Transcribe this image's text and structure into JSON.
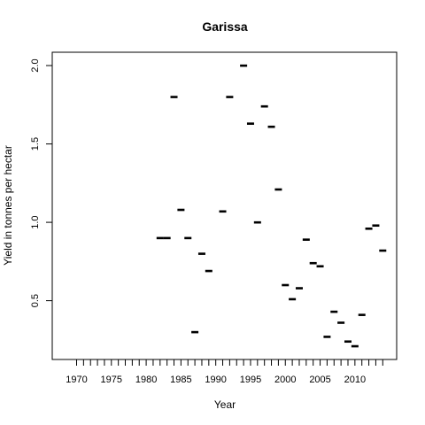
{
  "chart_data": {
    "type": "scatter",
    "title": "Garissa",
    "xlabel": "Year",
    "ylabel": "Yield in tonnes per hectar",
    "xlim": [
      1966.5,
      2016
    ],
    "ylim": [
      0.125,
      2.085
    ],
    "x_minor_ticks": [
      1970,
      1971,
      1972,
      1973,
      1974,
      1975,
      1976,
      1977,
      1978,
      1979,
      1980,
      1981,
      1982,
      1983,
      1984,
      1985,
      1986,
      1987,
      1988,
      1989,
      1990,
      1991,
      1992,
      1993,
      1994,
      1995,
      1996,
      1997,
      1998,
      1999,
      2000,
      2001,
      2002,
      2003,
      2004,
      2005,
      2006,
      2007,
      2008,
      2009,
      2010,
      2011,
      2012,
      2013,
      2014
    ],
    "x_tick_labels": [
      "1970",
      "1975",
      "1980",
      "1985",
      "1990",
      "1995",
      "2000",
      "2005",
      "2010"
    ],
    "y_tick_labels": [
      "0.5",
      "1.0",
      "1.5",
      "2.0"
    ],
    "grid": false,
    "marker": "dash",
    "points": [
      {
        "x": 1982,
        "y": 0.9
      },
      {
        "x": 1983,
        "y": 0.9
      },
      {
        "x": 1984,
        "y": 1.8
      },
      {
        "x": 1985,
        "y": 1.08
      },
      {
        "x": 1986,
        "y": 0.9
      },
      {
        "x": 1987,
        "y": 0.3
      },
      {
        "x": 1988,
        "y": 0.8
      },
      {
        "x": 1989,
        "y": 0.69
      },
      {
        "x": 1991,
        "y": 1.07
      },
      {
        "x": 1992,
        "y": 1.8
      },
      {
        "x": 1994,
        "y": 2.0
      },
      {
        "x": 1995,
        "y": 1.63
      },
      {
        "x": 1996,
        "y": 1.0
      },
      {
        "x": 1997,
        "y": 1.74
      },
      {
        "x": 1998,
        "y": 1.61
      },
      {
        "x": 1999,
        "y": 1.21
      },
      {
        "x": 2000,
        "y": 0.6
      },
      {
        "x": 2001,
        "y": 0.51
      },
      {
        "x": 2002,
        "y": 0.58
      },
      {
        "x": 2003,
        "y": 0.89
      },
      {
        "x": 2004,
        "y": 0.74
      },
      {
        "x": 2005,
        "y": 0.72
      },
      {
        "x": 2006,
        "y": 0.27
      },
      {
        "x": 2007,
        "y": 0.43
      },
      {
        "x": 2008,
        "y": 0.36
      },
      {
        "x": 2009,
        "y": 0.24
      },
      {
        "x": 2010,
        "y": 0.21
      },
      {
        "x": 2011,
        "y": 0.41
      },
      {
        "x": 2012,
        "y": 0.96
      },
      {
        "x": 2013,
        "y": 0.98
      },
      {
        "x": 2014,
        "y": 0.82
      }
    ]
  }
}
